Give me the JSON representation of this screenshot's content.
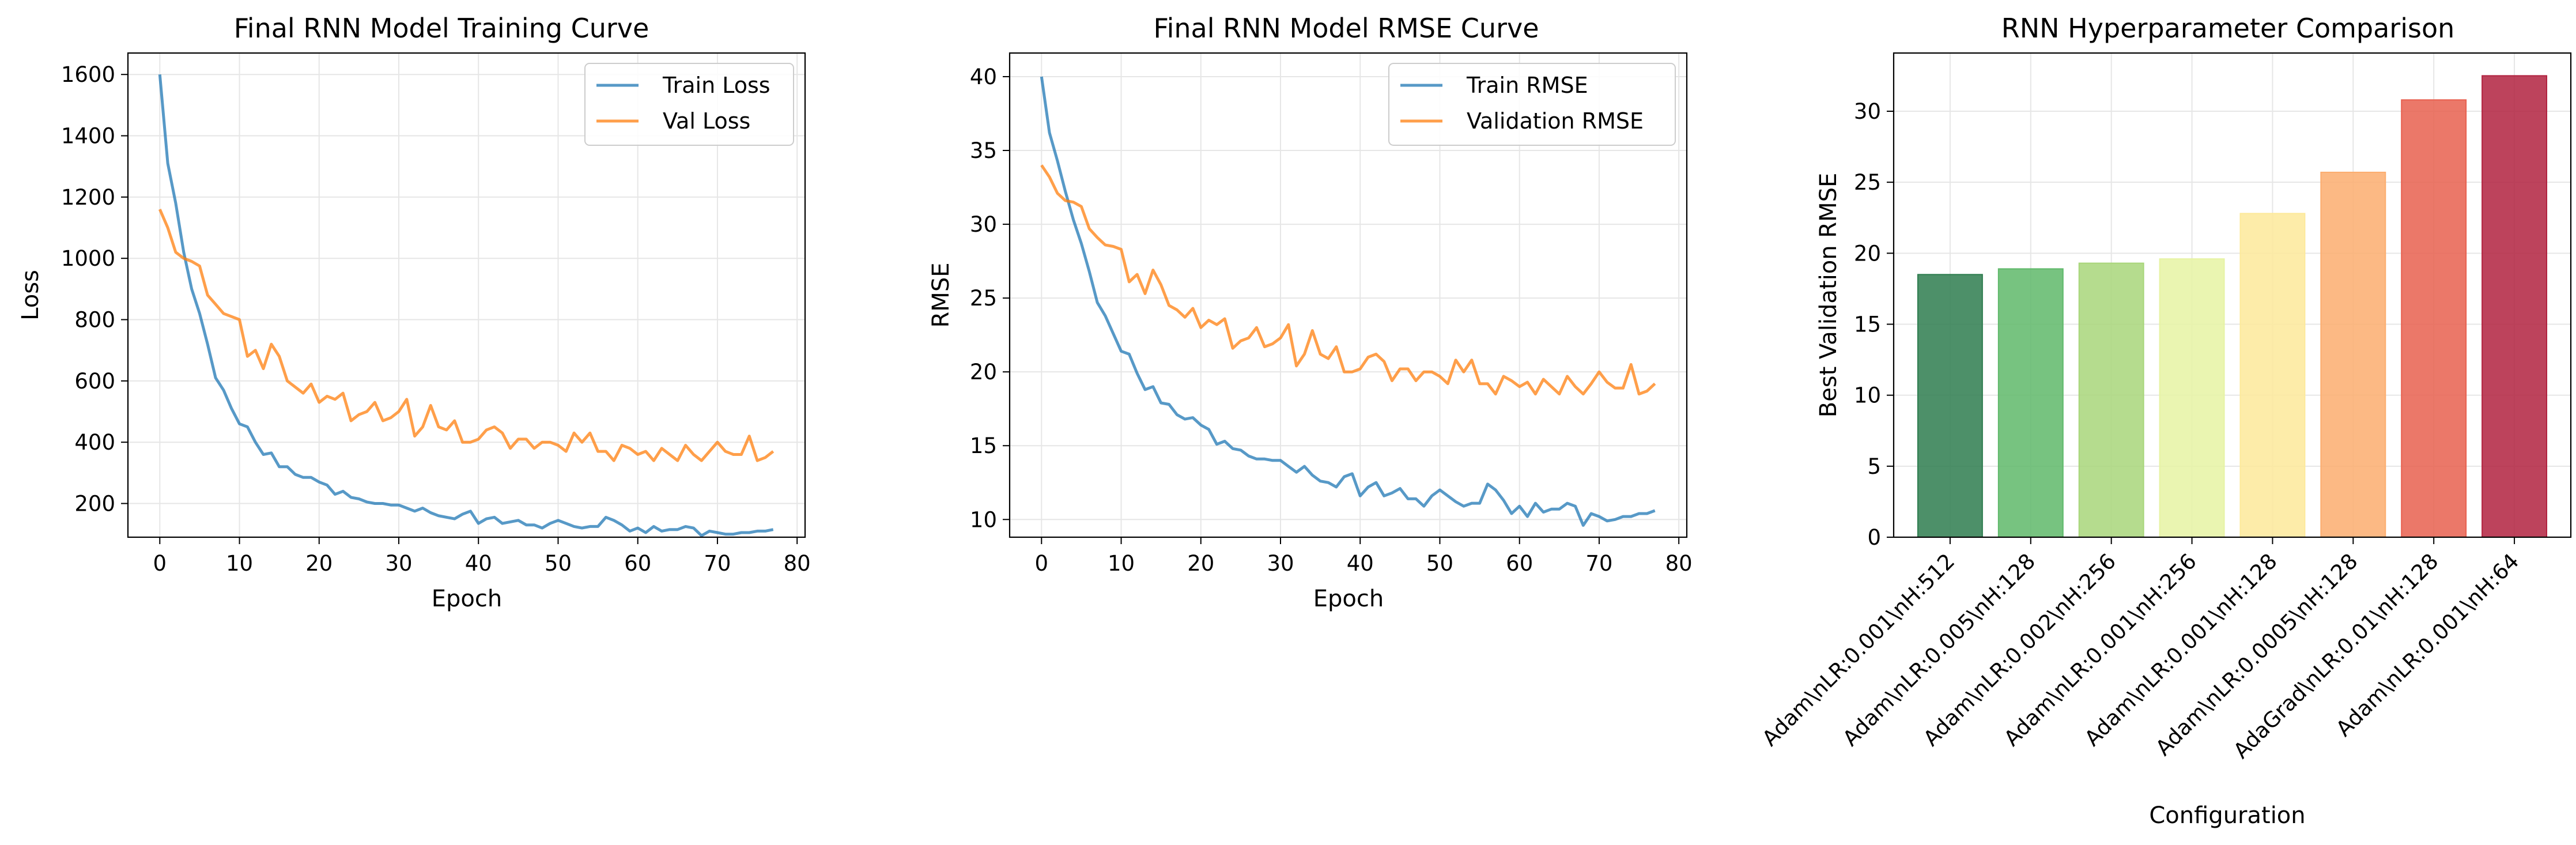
{
  "colors": {
    "train": "#1f77b4",
    "val": "#ff7f0e",
    "grid": "#e6e6e6",
    "bars": [
      "#2e7d4f",
      "#5fb96a",
      "#a8d67a",
      "#e6f3a3",
      "#fde99a",
      "#fcad6e",
      "#e8604f",
      "#b1223f"
    ]
  },
  "charts": [
    {
      "title": "Final RNN Model Training Curve",
      "xlabel": "Epoch",
      "ylabel": "Loss",
      "xticks": [
        "0",
        "10",
        "20",
        "30",
        "40",
        "50",
        "60",
        "70",
        "80"
      ],
      "yticks": [
        "200",
        "400",
        "600",
        "800",
        "1000",
        "1200",
        "1400",
        "1600"
      ],
      "legend": [
        "Train Loss",
        "Val Loss"
      ]
    },
    {
      "title": "Final RNN Model RMSE Curve",
      "xlabel": "Epoch",
      "ylabel": "RMSE",
      "xticks": [
        "0",
        "10",
        "20",
        "30",
        "40",
        "50",
        "60",
        "70",
        "80"
      ],
      "yticks": [
        "10",
        "15",
        "20",
        "25",
        "30",
        "35",
        "40"
      ],
      "legend": [
        "Train RMSE",
        "Validation RMSE"
      ]
    },
    {
      "title": "RNN Hyperparameter Comparison",
      "xlabel": "Configuration",
      "ylabel": "Best Validation RMSE",
      "yticks": [
        "0",
        "5",
        "10",
        "15",
        "20",
        "25",
        "30"
      ],
      "xticks": [
        "Adam\\nLR:0.001\\nH:512",
        "Adam\\nLR:0.005\\nH:128",
        "Adam\\nLR:0.002\\nH:256",
        "Adam\\nLR:0.001\\nH:256",
        "Adam\\nLR:0.001\\nH:128",
        "Adam\\nLR:0.0005\\nH:128",
        "AdaGrad\\nLR:0.01\\nH:128",
        "Adam\\nLR:0.001\\nH:64"
      ]
    }
  ],
  "chart_data": [
    {
      "type": "line",
      "title": "Final RNN Model Training Curve",
      "xlabel": "Epoch",
      "ylabel": "Loss",
      "xlim": [
        -4,
        81
      ],
      "ylim": [
        90,
        1670
      ],
      "grid": true,
      "legend_position": "top-right",
      "series": [
        {
          "name": "Train Loss",
          "x": [
            0,
            1,
            2,
            3,
            4,
            5,
            6,
            7,
            8,
            9,
            10,
            11,
            12,
            13,
            14,
            15,
            16,
            17,
            18,
            19,
            20,
            21,
            22,
            23,
            24,
            25,
            26,
            27,
            28,
            29,
            30,
            31,
            32,
            33,
            34,
            35,
            36,
            37,
            38,
            39,
            40,
            41,
            42,
            43,
            44,
            45,
            46,
            47,
            48,
            49,
            50,
            51,
            52,
            53,
            54,
            55,
            56,
            57,
            58,
            59,
            60,
            61,
            62,
            63,
            64,
            65,
            66,
            67,
            68,
            69,
            70,
            71,
            72,
            73,
            74,
            75,
            76,
            77
          ],
          "y": [
            1600,
            1310,
            1180,
            1020,
            900,
            820,
            720,
            610,
            570,
            510,
            460,
            450,
            400,
            360,
            365,
            320,
            320,
            295,
            285,
            285,
            270,
            260,
            230,
            240,
            220,
            215,
            205,
            200,
            200,
            195,
            195,
            185,
            175,
            185,
            170,
            160,
            155,
            150,
            165,
            175,
            135,
            150,
            155,
            135,
            140,
            145,
            130,
            130,
            120,
            135,
            145,
            135,
            125,
            120,
            125,
            125,
            155,
            145,
            130,
            110,
            120,
            105,
            125,
            110,
            115,
            115,
            125,
            120,
            95,
            110,
            105,
            100,
            100,
            105,
            105,
            110,
            110,
            115
          ]
        },
        {
          "name": "Val Loss",
          "x": [
            0,
            1,
            2,
            3,
            4,
            5,
            6,
            7,
            8,
            9,
            10,
            11,
            12,
            13,
            14,
            15,
            16,
            17,
            18,
            19,
            20,
            21,
            22,
            23,
            24,
            25,
            26,
            27,
            28,
            29,
            30,
            31,
            32,
            33,
            34,
            35,
            36,
            37,
            38,
            39,
            40,
            41,
            42,
            43,
            44,
            45,
            46,
            47,
            48,
            49,
            50,
            51,
            52,
            53,
            54,
            55,
            56,
            57,
            58,
            59,
            60,
            61,
            62,
            63,
            64,
            65,
            66,
            67,
            68,
            69,
            70,
            71,
            72,
            73,
            74,
            75,
            76,
            77
          ],
          "y": [
            1160,
            1100,
            1020,
            1000,
            990,
            975,
            880,
            850,
            820,
            810,
            800,
            680,
            700,
            640,
            720,
            680,
            600,
            580,
            560,
            590,
            530,
            550,
            540,
            560,
            470,
            490,
            500,
            530,
            470,
            480,
            500,
            540,
            420,
            450,
            520,
            450,
            440,
            470,
            400,
            400,
            410,
            440,
            450,
            430,
            380,
            410,
            410,
            380,
            400,
            400,
            390,
            370,
            430,
            400,
            430,
            370,
            370,
            340,
            390,
            380,
            360,
            370,
            340,
            380,
            360,
            340,
            390,
            360,
            340,
            370,
            400,
            370,
            360,
            360,
            420,
            340,
            350,
            370
          ]
        }
      ]
    },
    {
      "type": "line",
      "title": "Final RNN Model RMSE Curve",
      "xlabel": "Epoch",
      "ylabel": "RMSE",
      "xlim": [
        -4,
        81
      ],
      "ylim": [
        8.8,
        41.6
      ],
      "grid": true,
      "legend_position": "top-right",
      "series": [
        {
          "name": "Train RMSE",
          "x": [
            0,
            1,
            2,
            3,
            4,
            5,
            6,
            7,
            8,
            9,
            10,
            11,
            12,
            13,
            14,
            15,
            16,
            17,
            18,
            19,
            20,
            21,
            22,
            23,
            24,
            25,
            26,
            27,
            28,
            29,
            30,
            31,
            32,
            33,
            34,
            35,
            36,
            37,
            38,
            39,
            40,
            41,
            42,
            43,
            44,
            45,
            46,
            47,
            48,
            49,
            50,
            51,
            52,
            53,
            54,
            55,
            56,
            57,
            58,
            59,
            60,
            61,
            62,
            63,
            64,
            65,
            66,
            67,
            68,
            69,
            70,
            71,
            72,
            73,
            74,
            75,
            76,
            77
          ],
          "y": [
            40,
            36.2,
            34.3,
            32.2,
            30.3,
            28.7,
            26.8,
            24.7,
            23.8,
            22.6,
            21.4,
            21.2,
            19.9,
            18.8,
            19.0,
            17.9,
            17.8,
            17.1,
            16.8,
            16.9,
            16.4,
            16.1,
            15.1,
            15.3,
            14.8,
            14.7,
            14.3,
            14.1,
            14.1,
            14.0,
            14.0,
            13.6,
            13.2,
            13.6,
            13.0,
            12.6,
            12.5,
            12.2,
            12.9,
            13.1,
            11.6,
            12.2,
            12.5,
            11.6,
            11.8,
            12.1,
            11.4,
            11.4,
            10.9,
            11.6,
            12.0,
            11.6,
            11.2,
            10.9,
            11.1,
            11.1,
            12.4,
            12.0,
            11.3,
            10.4,
            10.9,
            10.2,
            11.1,
            10.5,
            10.7,
            10.7,
            11.1,
            10.9,
            9.6,
            10.4,
            10.2,
            9.9,
            10.0,
            10.2,
            10.2,
            10.4,
            10.4,
            10.6
          ]
        },
        {
          "name": "Validation RMSE",
          "x": [
            0,
            1,
            2,
            3,
            4,
            5,
            6,
            7,
            8,
            9,
            10,
            11,
            12,
            13,
            14,
            15,
            16,
            17,
            18,
            19,
            20,
            21,
            22,
            23,
            24,
            25,
            26,
            27,
            28,
            29,
            30,
            31,
            32,
            33,
            34,
            35,
            36,
            37,
            38,
            39,
            40,
            41,
            42,
            43,
            44,
            45,
            46,
            47,
            48,
            49,
            50,
            51,
            52,
            53,
            54,
            55,
            56,
            57,
            58,
            59,
            60,
            61,
            62,
            63,
            64,
            65,
            66,
            67,
            68,
            69,
            70,
            71,
            72,
            73,
            74,
            75,
            76,
            77
          ],
          "y": [
            34,
            33.2,
            32.1,
            31.6,
            31.5,
            31.2,
            29.7,
            29.1,
            28.6,
            28.5,
            28.3,
            26.1,
            26.6,
            25.3,
            26.9,
            25.9,
            24.5,
            24.2,
            23.7,
            24.3,
            23.0,
            23.5,
            23.2,
            23.6,
            21.6,
            22.1,
            22.3,
            23.0,
            21.7,
            21.9,
            22.3,
            23.2,
            20.4,
            21.2,
            22.8,
            21.2,
            20.9,
            21.7,
            20.0,
            20.0,
            20.2,
            21.0,
            21.2,
            20.7,
            19.4,
            20.2,
            20.2,
            19.4,
            20.0,
            20.0,
            19.7,
            19.2,
            20.8,
            20.0,
            20.8,
            19.2,
            19.2,
            18.5,
            19.7,
            19.4,
            19.0,
            19.3,
            18.5,
            19.5,
            19.0,
            18.5,
            19.7,
            19.0,
            18.5,
            19.2,
            20.0,
            19.3,
            18.9,
            18.9,
            20.5,
            18.5,
            18.7,
            19.2
          ]
        }
      ]
    },
    {
      "type": "bar",
      "title": "RNN Hyperparameter Comparison",
      "xlabel": "Configuration",
      "ylabel": "Best Validation RMSE",
      "ylim": [
        0,
        34.1
      ],
      "grid": true,
      "categories": [
        "Adam\\nLR:0.001\\nH:512",
        "Adam\\nLR:0.005\\nH:128",
        "Adam\\nLR:0.002\\nH:256",
        "Adam\\nLR:0.001\\nH:256",
        "Adam\\nLR:0.001\\nH:128",
        "Adam\\nLR:0.0005\\nH:128",
        "AdaGrad\\nLR:0.01\\nH:128",
        "Adam\\nLR:0.001\\nH:64"
      ],
      "values": [
        18.5,
        18.9,
        19.3,
        19.6,
        22.8,
        25.7,
        30.8,
        32.5
      ]
    }
  ]
}
